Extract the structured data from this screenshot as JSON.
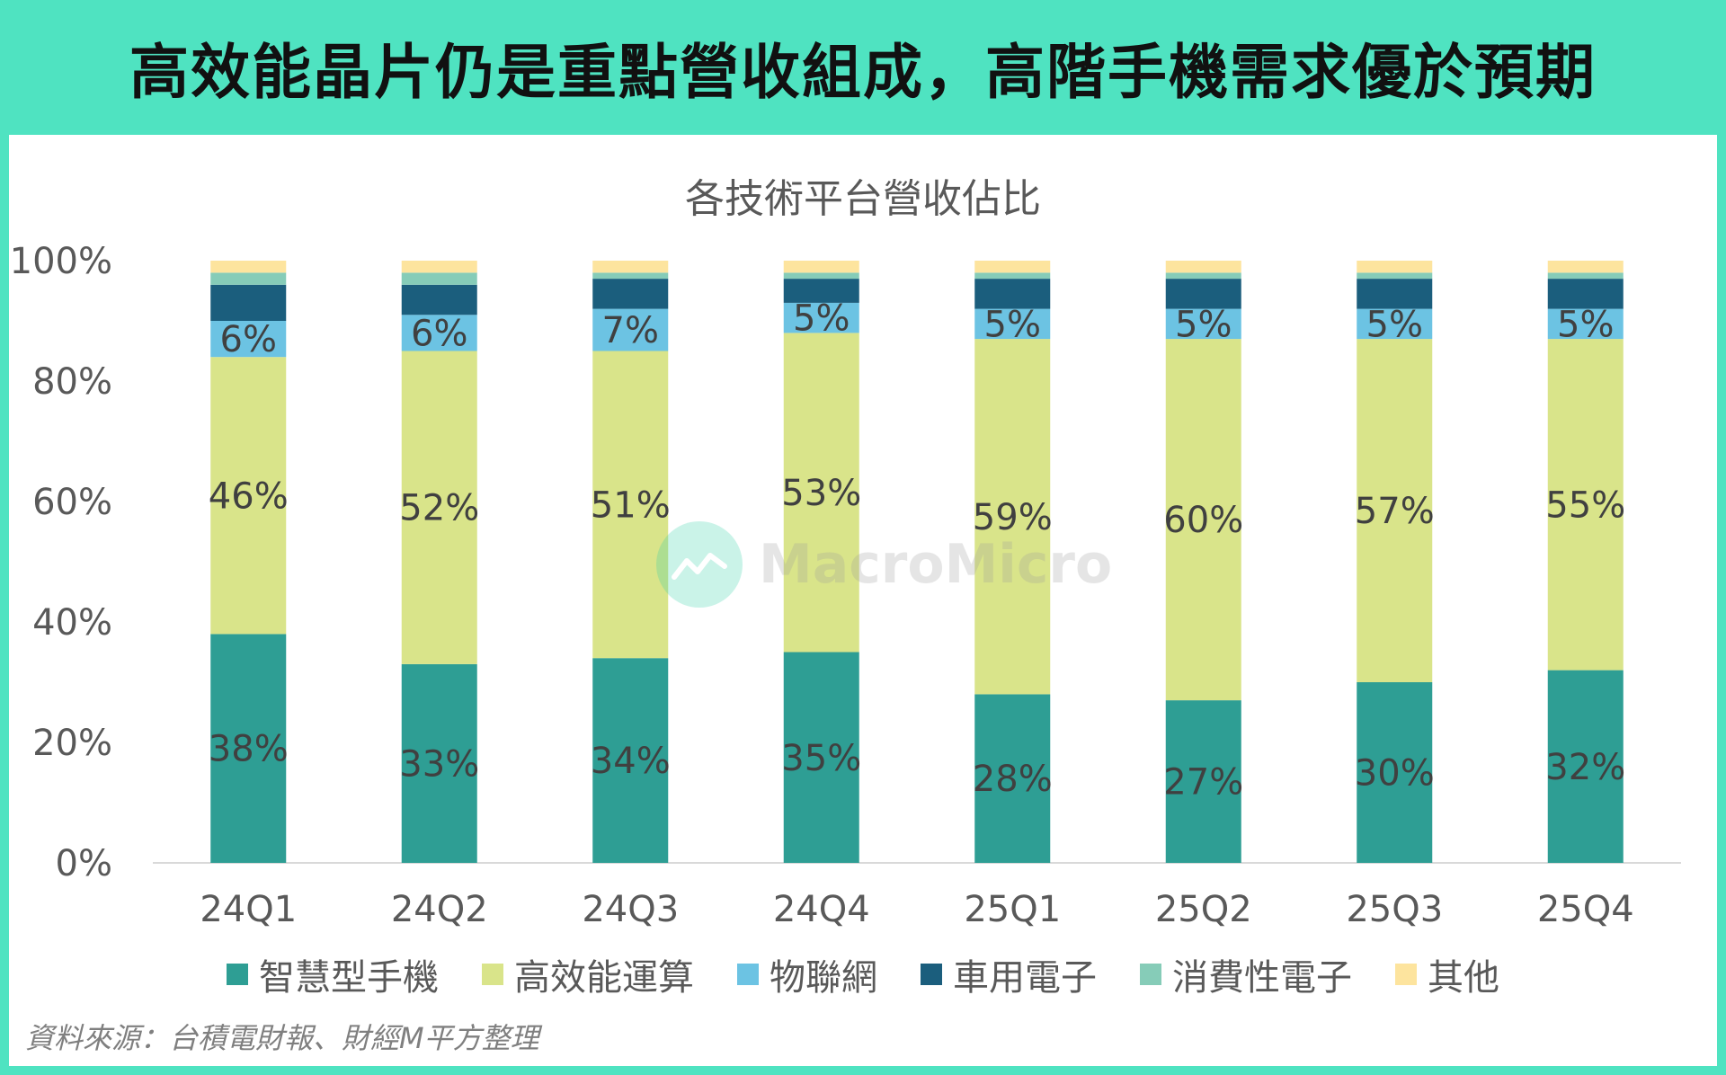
{
  "header": {
    "title": "高效能晶片仍是重點營收組成，高階手機需求優於預期"
  },
  "watermark": {
    "text": "MacroMicro"
  },
  "source": {
    "text": "資料來源：台積電財報、財經M平方整理"
  },
  "chart_data": {
    "type": "bar",
    "stacked": true,
    "title": "各技術平台營收佔比",
    "categories": [
      "24Q1",
      "24Q2",
      "24Q3",
      "24Q4",
      "25Q1",
      "25Q2",
      "25Q3",
      "25Q4"
    ],
    "y_ticks": [
      "0%",
      "20%",
      "40%",
      "60%",
      "80%",
      "100%"
    ],
    "ylim": [
      0,
      100
    ],
    "grid": false,
    "legend_position": "bottom",
    "series": [
      {
        "name": "智慧型手機",
        "color": "#2e9e94",
        "values": [
          38,
          33,
          34,
          35,
          28,
          27,
          30,
          32
        ],
        "labels": [
          "38%",
          "33%",
          "34%",
          "35%",
          "28%",
          "27%",
          "30%",
          "32%"
        ]
      },
      {
        "name": "高效能運算",
        "color": "#d9e48a",
        "values": [
          46,
          52,
          51,
          53,
          59,
          60,
          57,
          55
        ],
        "labels": [
          "46%",
          "52%",
          "51%",
          "53%",
          "59%",
          "60%",
          "57%",
          "55%"
        ]
      },
      {
        "name": "物聯網",
        "color": "#6cc3e3",
        "values": [
          6,
          6,
          7,
          5,
          5,
          5,
          5,
          5
        ],
        "labels": [
          "6%",
          "6%",
          "7%",
          "5%",
          "5%",
          "5%",
          "5%",
          "5%"
        ]
      },
      {
        "name": "車用電子",
        "color": "#1b5e7d",
        "values": [
          6,
          5,
          5,
          4,
          5,
          5,
          5,
          5
        ]
      },
      {
        "name": "消費性電子",
        "color": "#86ccb8",
        "values": [
          2,
          2,
          1,
          1,
          1,
          1,
          1,
          1
        ]
      },
      {
        "name": "其他",
        "color": "#fde49e",
        "values": [
          2,
          2,
          2,
          2,
          2,
          2,
          2,
          2
        ]
      }
    ]
  }
}
